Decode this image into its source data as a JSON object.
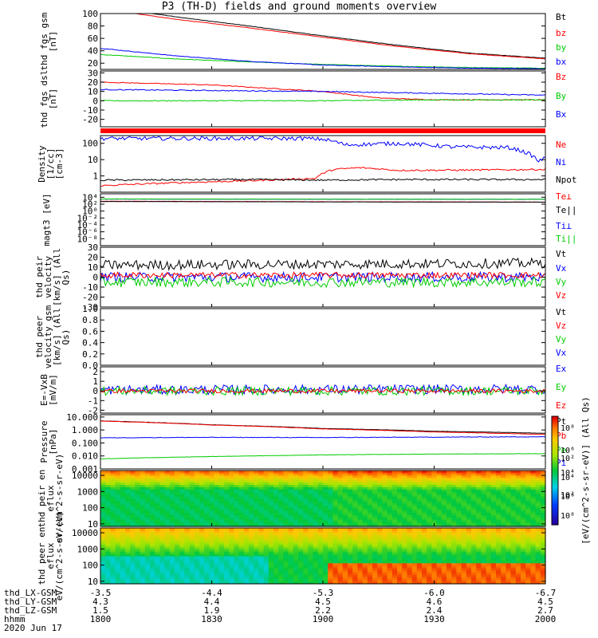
{
  "chart_data": {
    "type": "line",
    "title": "P3 (TH-D) fields and ground moments overview",
    "date": "2020 Jun 17",
    "time_axis": {
      "labels": [
        "1800",
        "1830",
        "1900",
        "1930",
        "2000"
      ],
      "minutes": [
        0,
        30,
        60,
        90,
        120
      ]
    },
    "position_rows": [
      {
        "name": "thd_LX-GSM",
        "values": [
          "-3.5",
          "-4.4",
          "-5.3",
          "-6.0",
          "-6.7"
        ]
      },
      {
        "name": "thd_LY-GSM",
        "values": [
          "4.3",
          "4.4",
          "4.5",
          "4.6",
          "4.5"
        ]
      },
      {
        "name": "thd_LZ-GSM",
        "values": [
          "1.5",
          "1.9",
          "2.2",
          "2.4",
          "2.7"
        ]
      },
      {
        "name": "hhmm",
        "values": [
          "1800",
          "1830",
          "1900",
          "1930",
          "2000"
        ]
      }
    ],
    "panels": [
      {
        "id": "fgs-gsm",
        "ylabel": "thd fgs gsm [nT]",
        "scale": "linear",
        "ylim": [
          10,
          100
        ],
        "ticks": [
          {
            "v": 100,
            "t": "100"
          },
          {
            "v": 80,
            "t": "80"
          },
          {
            "v": 60,
            "t": "60"
          },
          {
            "v": 40,
            "t": "40"
          },
          {
            "v": 20,
            "t": "20"
          }
        ],
        "series": [
          {
            "name": "Bt",
            "color": "#000000",
            "x": [
              0,
              20,
              40,
              60,
              80,
              100,
              120
            ],
            "y": [
              112,
              95,
              80,
              64,
              49,
              36,
              28
            ],
            "noise": 0.3
          },
          {
            "name": "bz",
            "color": "#ff0000",
            "x": [
              0,
              20,
              40,
              60,
              80,
              100,
              120
            ],
            "y": [
              108,
              91,
              77,
              62,
              47,
              35,
              27
            ],
            "noise": 0.3
          },
          {
            "name": "by",
            "color": "#00cc00",
            "x": [
              0,
              20,
              40,
              60,
              80,
              100,
              120
            ],
            "y": [
              34,
              27,
              22,
              18,
              15,
              13,
              12
            ],
            "noise": 0.4
          },
          {
            "name": "bx",
            "color": "#0000ff",
            "x": [
              0,
              20,
              40,
              60,
              80,
              100,
              120
            ],
            "y": [
              44,
              32,
              23,
              17,
              14,
              12,
              11
            ],
            "noise": 0.4
          }
        ]
      },
      {
        "id": "fgs-dsl",
        "ylabel": "thd fgs dsl [nT]",
        "scale": "linear",
        "ylim": [
          -28,
          32
        ],
        "ticks": [
          {
            "v": 30,
            "t": "30"
          },
          {
            "v": 20,
            "t": "20"
          },
          {
            "v": 10,
            "t": "10"
          },
          {
            "v": 0,
            "t": "0"
          },
          {
            "v": -10,
            "t": "-10"
          },
          {
            "v": -20,
            "t": "-20"
          }
        ],
        "series": [
          {
            "name": "Bz",
            "color": "#ff0000",
            "x": [
              0,
              30,
              60,
              75,
              90,
              120
            ],
            "y": [
              20,
              17,
              10,
              3,
              1,
              1
            ],
            "noise": 0.4
          },
          {
            "name": "By",
            "color": "#00cc00",
            "x": [
              0,
              30,
              60,
              90,
              120
            ],
            "y": [
              0,
              0,
              0,
              1,
              1
            ],
            "noise": 0.5
          },
          {
            "name": "Bx",
            "color": "#0000ff",
            "x": [
              0,
              30,
              60,
              90,
              120
            ],
            "y": [
              12,
              11,
              10,
              8,
              6
            ],
            "noise": 0.5
          }
        ]
      },
      {
        "id": "density",
        "ylabel": "Density [1/cc] [cm-3]",
        "scale": "log",
        "ylim": [
          0.1,
          300
        ],
        "ticks": [
          {
            "v": 100,
            "t": "100"
          },
          {
            "v": 10,
            "t": "10"
          },
          {
            "v": 1,
            "t": "1"
          }
        ],
        "series": [
          {
            "name": "Ne",
            "color": "#ff0000",
            "x": [
              0,
              40,
              58,
              63,
              70,
              80,
              100,
              120
            ],
            "y": [
              0.25,
              0.5,
              0.7,
              2.5,
              3.2,
              2.2,
              2.3,
              2.5
            ],
            "noise": 0.05
          },
          {
            "name": "Ni",
            "color": "#0000ff",
            "x": [
              55,
              60,
              66,
              80,
              95,
              110,
              118,
              120
            ],
            "y": [
              200,
              180,
              80,
              100,
              60,
              55,
              8,
              12
            ],
            "noise": 0.12
          },
          {
            "name": "Npot",
            "color": "#000000",
            "x": [
              0,
              40,
              60,
              80,
              120
            ],
            "y": [
              0.55,
              0.6,
              0.55,
              0.6,
              0.6
            ],
            "noise": 0.05
          }
        ]
      },
      {
        "id": "temp",
        "ylabel": "magt3 [eV]",
        "scale": "log",
        "ylim": [
          1e-10,
          100000.0
        ],
        "ticks": [
          {
            "v": 10000.0,
            "t": "10⁴"
          },
          {
            "v": 100,
            "t": "10²"
          },
          {
            "v": 1,
            "t": "10⁰"
          },
          {
            "v": 0.01,
            "t": "10⁻²"
          },
          {
            "v": 0.0001,
            "t": "10⁻⁴"
          },
          {
            "v": 1e-06,
            "t": "10⁻⁶"
          },
          {
            "v": 1e-08,
            "t": "10⁻⁸"
          }
        ],
        "series": [
          {
            "name": "Te⊥",
            "color": "#ff0000",
            "x": [
              0,
              60,
              120
            ],
            "y": [
              700,
              500,
              400
            ],
            "noise": 0.03
          },
          {
            "name": "Te||",
            "color": "#000000",
            "x": [
              0,
              60,
              120
            ],
            "y": [
              600,
              450,
              380
            ],
            "noise": 0.03
          },
          {
            "name": "Ti⊥",
            "color": "#0000ff",
            "x": [
              0,
              60,
              120
            ],
            "y": [
              3000,
              2600,
              2500
            ],
            "noise": 0.03
          },
          {
            "name": "Ti||",
            "color": "#00cc00",
            "x": [
              0,
              60,
              120
            ],
            "y": [
              3200,
              2800,
              2700
            ],
            "noise": 0.03
          }
        ]
      },
      {
        "id": "vel-peir",
        "ylabel": "thd peir velocity [km/s] (All Qs)",
        "scale": "linear",
        "ylim": [
          -30,
          30
        ],
        "ticks": [
          {
            "v": 30,
            "t": "30"
          },
          {
            "v": 20,
            "t": "20"
          },
          {
            "v": 10,
            "t": "10"
          },
          {
            "v": 0,
            "t": "0"
          },
          {
            "v": -10,
            "t": "-10"
          },
          {
            "v": -20,
            "t": "-20"
          },
          {
            "v": -30,
            "t": "-30"
          }
        ],
        "series": [
          {
            "name": "Vt",
            "color": "#000000",
            "x": [
              0,
              120
            ],
            "y": [
              12,
              14
            ],
            "noise": 5
          },
          {
            "name": "Vx",
            "color": "#0000ff",
            "x": [
              0,
              120
            ],
            "y": [
              0,
              0
            ],
            "noise": 5
          },
          {
            "name": "Vy",
            "color": "#00cc00",
            "x": [
              0,
              120
            ],
            "y": [
              -5,
              -5
            ],
            "noise": 5
          },
          {
            "name": "Vz",
            "color": "#ff0000",
            "x": [
              0,
              120
            ],
            "y": [
              2,
              2
            ],
            "noise": 3
          }
        ]
      },
      {
        "id": "vel-peer",
        "ylabel": "thd peer velocity gsm [km/s] (All Qs)",
        "scale": "linear",
        "ylim": [
          0,
          1
        ],
        "ticks": [
          {
            "v": 1.0,
            "t": "1.0"
          },
          {
            "v": 0.8,
            "t": "0.8"
          },
          {
            "v": 0.6,
            "t": "0.6"
          },
          {
            "v": 0.4,
            "t": "0.4"
          },
          {
            "v": 0.2,
            "t": "0.2"
          },
          {
            "v": 0.0,
            "t": "0.0"
          }
        ],
        "series": []
      },
      {
        "id": "efield",
        "ylabel": "E=-VxB [mV/m]",
        "scale": "linear",
        "ylim": [
          -2.3,
          2.5
        ],
        "ticks": [
          {
            "v": 2,
            "t": "2"
          },
          {
            "v": 1,
            "t": "1"
          },
          {
            "v": 0,
            "t": "0"
          },
          {
            "v": -1,
            "t": "-1"
          },
          {
            "v": -2,
            "t": "-2"
          }
        ],
        "series": [
          {
            "name": "Ex",
            "color": "#0000ff",
            "x": [
              0,
              120
            ],
            "y": [
              0.1,
              0.2
            ],
            "noise": 0.5
          },
          {
            "name": "Ey",
            "color": "#00cc00",
            "x": [
              0,
              120
            ],
            "y": [
              0,
              0
            ],
            "noise": 0.45
          },
          {
            "name": "Ez",
            "color": "#ff0000",
            "x": [
              0,
              120
            ],
            "y": [
              0,
              0
            ],
            "noise": 0.2
          }
        ]
      },
      {
        "id": "pressure",
        "ylabel": "Pressure [nPa]",
        "scale": "log",
        "ylim": [
          0.001,
          15
        ],
        "ticks": [
          {
            "v": 10,
            "t": "10.000"
          },
          {
            "v": 1,
            "t": "1.000"
          },
          {
            "v": 0.1,
            "t": "0.100"
          },
          {
            "v": 0.01,
            "t": "0.010"
          },
          {
            "v": 0.001,
            "t": "0.001"
          }
        ],
        "series": [
          {
            "name": "Pt",
            "color": "#000000",
            "x": [
              0,
              30,
              60,
              90,
              120
            ],
            "y": [
              5,
              2.5,
              1.3,
              0.8,
              0.55
            ],
            "noise": 0.01
          },
          {
            "name": "Pb",
            "color": "#ff0000",
            "x": [
              0,
              30,
              60,
              90,
              120
            ],
            "y": [
              4.8,
              2.4,
              1.2,
              0.7,
              0.45
            ],
            "noise": 0.01
          },
          {
            "name": "Pe",
            "color": "#00cc00",
            "x": [
              0,
              30,
              60,
              90,
              120
            ],
            "y": [
              0.006,
              0.009,
              0.012,
              0.014,
              0.015
            ],
            "noise": 0.01
          },
          {
            "name": "Pi",
            "color": "#0000ff",
            "x": [
              0,
              30,
              60,
              90,
              120
            ],
            "y": [
              0.25,
              0.27,
              0.26,
              0.28,
              0.3
            ],
            "noise": 0.02
          }
        ]
      },
      {
        "id": "peir-spec",
        "ylabel": "thd peir en eflux eV/(cm^2-s-sr-eV)",
        "scale": "log",
        "type": "heatmap",
        "ylim": [
          7,
          20000
        ],
        "ticks": [
          {
            "v": 10000,
            "t": "10000"
          },
          {
            "v": 1000,
            "t": "1000"
          },
          {
            "v": 100,
            "t": "100"
          },
          {
            "v": 10,
            "t": "10"
          }
        ]
      },
      {
        "id": "peer-spec",
        "ylabel": "thd peer en eflux eV/(cm^2-s-sr-eV)",
        "scale": "log",
        "type": "heatmap",
        "ylim": [
          7,
          20000
        ],
        "ticks": [
          {
            "v": 10000,
            "t": "10000"
          },
          {
            "v": 1000,
            "t": "1000"
          },
          {
            "v": 100,
            "t": "100"
          },
          {
            "v": 10,
            "t": "10"
          }
        ]
      }
    ],
    "colorbar": {
      "label": "[eV/(cm^2-s-sr-eV)] (All Qs)",
      "ticks": [
        "10⁸",
        "10⁶",
        "10⁴",
        "10²"
      ]
    }
  }
}
